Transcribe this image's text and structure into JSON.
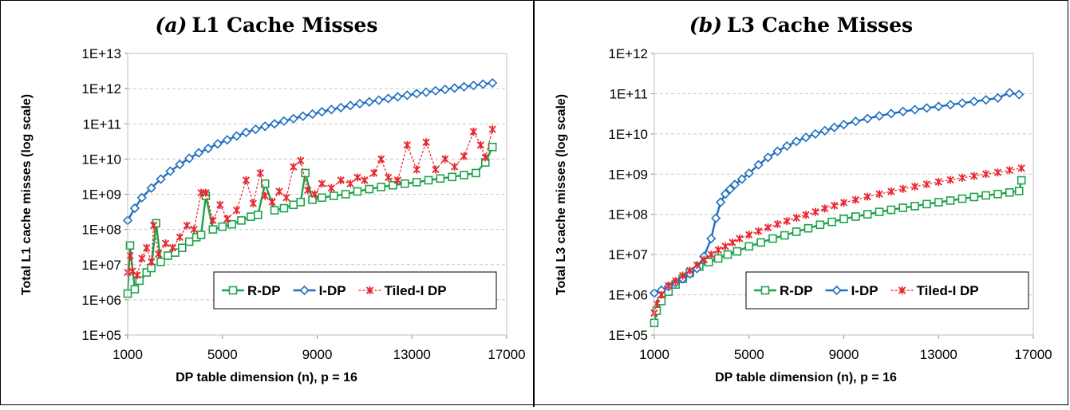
{
  "chart_data": [
    {
      "type": "line",
      "title_tag": "(a)",
      "title": "L1 Cache Misses",
      "xlabel": "DP table dimension (n), p = 16",
      "ylabel": "Total L1 cache misses (log scale)",
      "y_scale": "log",
      "ylim": [
        100000,
        10000000000000
      ],
      "xlim": [
        1000,
        17000
      ],
      "x_ticks": [
        "1000",
        "5000",
        "9000",
        "13000",
        "17000"
      ],
      "y_ticks": [
        "1E+05",
        "1E+06",
        "1E+07",
        "1E+08",
        "1E+09",
        "1E+10",
        "1E+11",
        "1E+12",
        "1E+13"
      ],
      "grid": "horizontal dashed",
      "legend_position": "bottom-right",
      "series": [
        {
          "name": "R-DP",
          "color": "#1ba34a",
          "marker": "square",
          "x": [
            1000,
            1100,
            1300,
            1500,
            1800,
            2000,
            2200,
            2400,
            2700,
            3000,
            3300,
            3600,
            3900,
            4100,
            4300,
            4600,
            5000,
            5400,
            5800,
            6200,
            6500,
            6800,
            7200,
            7600,
            8000,
            8300,
            8500,
            8800,
            9200,
            9700,
            10200,
            10700,
            11200,
            11700,
            12200,
            12700,
            13200,
            13700,
            14200,
            14700,
            15200,
            15700,
            16100,
            16400
          ],
          "y": [
            1500000,
            35000000,
            2000000,
            3500000,
            6000000,
            8000000,
            150000000,
            12000000,
            18000000,
            22000000,
            30000000,
            45000000,
            60000000,
            70000000,
            900000000,
            100000000,
            120000000,
            140000000,
            180000000,
            230000000,
            260000000,
            2000000000,
            350000000,
            400000000,
            500000000,
            600000000,
            4000000000,
            700000000,
            800000000,
            900000000,
            1000000000,
            1200000000,
            1400000000,
            1600000000,
            1800000000,
            2000000000,
            2200000000,
            2500000000,
            2800000000,
            3100000000,
            3500000000,
            4000000000,
            8000000000,
            22000000000
          ]
        },
        {
          "name": "I-DP",
          "color": "#1f6fbf",
          "marker": "diamond",
          "x": [
            1000,
            1300,
            1600,
            2000,
            2400,
            2800,
            3200,
            3600,
            4000,
            4400,
            4800,
            5200,
            5600,
            6000,
            6400,
            6800,
            7200,
            7600,
            8000,
            8400,
            8800,
            9200,
            9600,
            10000,
            10400,
            10800,
            11200,
            11600,
            12000,
            12400,
            12800,
            13200,
            13600,
            14000,
            14400,
            14800,
            15200,
            15600,
            16000,
            16400
          ],
          "y": [
            180000000,
            400000000,
            800000000,
            1500000000,
            2700000000,
            4500000000,
            7000000000,
            10500000000,
            15000000000,
            20000000000,
            27000000000,
            35000000000,
            45000000000,
            57000000000,
            70000000000,
            85000000000,
            100000000000,
            120000000000,
            140000000000,
            165000000000,
            190000000000,
            220000000000,
            255000000000,
            290000000000,
            330000000000,
            375000000000,
            420000000000,
            470000000000,
            525000000000,
            585000000000,
            650000000000,
            720000000000,
            790000000000,
            870000000000,
            950000000000,
            1040000000000,
            1130000000000,
            1230000000000,
            1340000000000,
            1450000000000
          ]
        },
        {
          "name": "Tiled-I DP",
          "color": "#e8262d",
          "marker": "star",
          "x": [
            1000,
            1100,
            1200,
            1400,
            1600,
            1800,
            2000,
            2100,
            2300,
            2600,
            2900,
            3200,
            3500,
            3800,
            4100,
            4300,
            4600,
            4900,
            5200,
            5600,
            6000,
            6300,
            6600,
            6800,
            7100,
            7400,
            7700,
            8000,
            8300,
            8600,
            8900,
            9200,
            9600,
            10000,
            10400,
            10700,
            11000,
            11400,
            11700,
            12000,
            12400,
            12800,
            13200,
            13600,
            14000,
            14400,
            14800,
            15200,
            15600,
            15900,
            16100,
            16400
          ],
          "y": [
            6000000,
            18000000,
            6500000,
            5000000,
            15000000,
            30000000,
            12000000,
            130000000,
            20000000,
            40000000,
            30000000,
            60000000,
            130000000,
            100000000,
            1100000000,
            1100000000,
            180000000,
            500000000,
            200000000,
            350000000,
            2500000000,
            550000000,
            4000000000,
            900000000,
            600000000,
            1200000000,
            800000000,
            6000000000,
            9000000000,
            1300000000,
            1000000000,
            2000000000,
            1500000000,
            2500000000,
            2000000000,
            3000000000,
            2500000000,
            4000000000,
            10000000000,
            3000000000,
            2500000000,
            25000000000,
            5000000000,
            30000000000,
            5000000000,
            10000000000,
            6000000000,
            12000000000,
            60000000000,
            25000000000,
            11000000000,
            70000000000
          ]
        }
      ]
    },
    {
      "type": "line",
      "title_tag": "(b)",
      "title": "L3 Cache Misses",
      "xlabel": "DP table dimension (n), p = 16",
      "ylabel": "Total L3 cache misses (log scale)",
      "y_scale": "log",
      "ylim": [
        100000,
        1000000000000
      ],
      "xlim": [
        1000,
        17000
      ],
      "x_ticks": [
        "1000",
        "5000",
        "9000",
        "13000",
        "17000"
      ],
      "y_ticks": [
        "1E+05",
        "1E+06",
        "1E+07",
        "1E+08",
        "1E+09",
        "1E+10",
        "1E+11",
        "1E+12"
      ],
      "grid": "horizontal dashed",
      "legend_position": "bottom-right",
      "series": [
        {
          "name": "R-DP",
          "color": "#1ba34a",
          "marker": "square",
          "x": [
            1000,
            1100,
            1300,
            1600,
            1900,
            2200,
            2500,
            2900,
            3300,
            3700,
            4100,
            4500,
            5000,
            5500,
            6000,
            6500,
            7000,
            7500,
            8000,
            8500,
            9000,
            9500,
            10000,
            10500,
            11000,
            11500,
            12000,
            12500,
            13000,
            13500,
            14000,
            14500,
            15000,
            15500,
            16000,
            16400,
            16500
          ],
          "y": [
            200000,
            400000,
            700000,
            1200000,
            1800000,
            2500000,
            3500000,
            5000000,
            6500000,
            8000000,
            10000000,
            12000000,
            16000000,
            20000000,
            25000000,
            30000000,
            37000000,
            45000000,
            55000000,
            65000000,
            77000000,
            88000000,
            100000000,
            115000000,
            130000000,
            145000000,
            160000000,
            180000000,
            200000000,
            220000000,
            245000000,
            270000000,
            295000000,
            320000000,
            350000000,
            380000000,
            700000000
          ]
        },
        {
          "name": "I-DP",
          "color": "#1f6fbf",
          "marker": "diamond",
          "x": [
            1000,
            1300,
            1600,
            1900,
            2200,
            2500,
            2800,
            3100,
            3400,
            3600,
            3800,
            4000,
            4200,
            4400,
            4700,
            5000,
            5400,
            5800,
            6200,
            6600,
            7000,
            7400,
            7800,
            8200,
            8600,
            9000,
            9500,
            10000,
            10500,
            11000,
            11500,
            12000,
            12500,
            13000,
            13500,
            14000,
            14500,
            15000,
            15500,
            16000,
            16400
          ],
          "y": [
            1100000,
            1300000,
            1600000,
            2000000,
            2500000,
            3300000,
            4500000,
            9000000,
            25000000,
            80000000,
            200000000,
            320000000,
            420000000,
            550000000,
            750000000,
            1050000000,
            1700000000,
            2600000000,
            3700000000,
            5000000000,
            6500000000,
            8200000000,
            10000000000,
            12000000000,
            14500000000,
            17000000000,
            20500000000,
            24000000000,
            28000000000,
            32000000000,
            36000000000,
            40000000000,
            44000000000,
            48000000000,
            53000000000,
            58000000000,
            64000000000,
            70000000000,
            78000000000,
            105000000000,
            95000000000
          ]
        },
        {
          "name": "Tiled-I DP",
          "color": "#e8262d",
          "marker": "star",
          "x": [
            1000,
            1100,
            1300,
            1600,
            1900,
            2200,
            2500,
            2800,
            3100,
            3400,
            3700,
            4000,
            4300,
            4600,
            5000,
            5400,
            5800,
            6200,
            6600,
            7000,
            7400,
            7800,
            8200,
            8600,
            9000,
            9500,
            10000,
            10500,
            11000,
            11500,
            12000,
            12500,
            13000,
            13500,
            14000,
            14500,
            15000,
            15500,
            16000,
            16500
          ],
          "y": [
            350000,
            600000,
            1000000,
            1700000,
            2200000,
            3000000,
            4000000,
            5500000,
            7500000,
            10000000,
            13000000,
            16000000,
            20000000,
            25000000,
            31000000,
            38000000,
            47000000,
            57000000,
            68000000,
            82000000,
            97000000,
            115000000,
            140000000,
            165000000,
            195000000,
            230000000,
            275000000,
            320000000,
            370000000,
            430000000,
            490000000,
            560000000,
            640000000,
            720000000,
            810000000,
            900000000,
            1000000000,
            1100000000,
            1250000000,
            1400000000
          ]
        }
      ]
    }
  ]
}
